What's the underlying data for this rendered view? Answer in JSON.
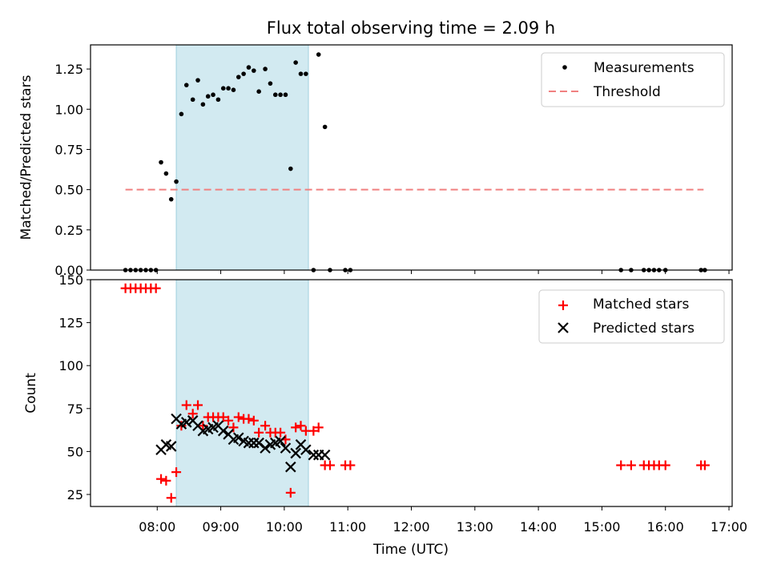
{
  "chart_data": [
    {
      "type": "scatter",
      "title": "Flux total observing time = 2.09 h",
      "xlabel": "",
      "ylabel": "Matched/Predicted stars",
      "xlim": [
        6.95,
        17.05
      ],
      "ylim": [
        0,
        1.4
      ],
      "xticks": [
        8,
        9,
        10,
        11,
        12,
        13,
        14,
        15,
        16,
        17
      ],
      "yticks": [
        0,
        0.25,
        0.5,
        0.75,
        1.0,
        1.25
      ],
      "ytick_labels": [
        "0.00",
        "0.25",
        "0.50",
        "0.75",
        "1.00",
        "1.25"
      ],
      "shaded_range": [
        8.3,
        10.38
      ],
      "threshold": {
        "value": 0.5,
        "x_range": [
          7.5,
          16.6
        ],
        "color": "#f08080"
      },
      "legend": {
        "position": "top-right",
        "measurements_label": "Measurements",
        "threshold_label": "Threshold"
      },
      "series": [
        {
          "name": "Measurements",
          "x": [
            7.5,
            7.58,
            7.66,
            7.74,
            7.82,
            7.9,
            7.98,
            8.06,
            8.14,
            8.22,
            8.3,
            8.38,
            8.46,
            8.56,
            8.64,
            8.72,
            8.8,
            8.88,
            8.96,
            9.04,
            9.12,
            9.2,
            9.28,
            9.36,
            9.44,
            9.52,
            9.6,
            9.7,
            9.78,
            9.86,
            9.94,
            10.02,
            10.1,
            10.18,
            10.26,
            10.34,
            10.46,
            10.54,
            10.64,
            10.72,
            10.96,
            11.04,
            15.3,
            15.46,
            15.66,
            15.74,
            15.82,
            15.9,
            16.0,
            16.56,
            16.62
          ],
          "y": [
            0,
            0,
            0,
            0,
            0,
            0,
            0,
            0.67,
            0.6,
            0.44,
            0.55,
            0.97,
            1.15,
            1.06,
            1.18,
            1.03,
            1.08,
            1.09,
            1.06,
            1.13,
            1.13,
            1.12,
            1.2,
            1.22,
            1.26,
            1.24,
            1.11,
            1.25,
            1.16,
            1.09,
            1.09,
            1.09,
            0.63,
            1.29,
            1.22,
            1.22,
            0,
            1.34,
            0.89,
            0,
            0,
            0,
            0,
            0,
            0,
            0,
            0,
            0,
            0,
            0,
            0
          ]
        }
      ]
    },
    {
      "type": "scatter",
      "title": "",
      "xlabel": "Time (UTC)",
      "ylabel": "Count",
      "xlim": [
        6.95,
        17.05
      ],
      "ylim": [
        18,
        150
      ],
      "xticks": [
        8,
        9,
        10,
        11,
        12,
        13,
        14,
        15,
        16,
        17
      ],
      "xtick_labels": [
        "08:00",
        "09:00",
        "10:00",
        "11:00",
        "12:00",
        "13:00",
        "14:00",
        "15:00",
        "16:00",
        "17:00"
      ],
      "yticks": [
        25,
        50,
        75,
        100,
        125,
        150
      ],
      "ytick_labels": [
        "25",
        "50",
        "75",
        "100",
        "125",
        "150"
      ],
      "shaded_range": [
        8.3,
        10.38
      ],
      "legend": {
        "position": "top-right",
        "matched_label": "Matched stars",
        "predicted_label": "Predicted stars"
      },
      "series": [
        {
          "name": "Matched stars",
          "marker": "+",
          "color": "#ff0000",
          "x": [
            7.5,
            7.58,
            7.66,
            7.74,
            7.82,
            7.9,
            7.98,
            8.06,
            8.14,
            8.22,
            8.3,
            8.38,
            8.46,
            8.56,
            8.64,
            8.72,
            8.8,
            8.88,
            8.96,
            9.04,
            9.12,
            9.2,
            9.28,
            9.36,
            9.44,
            9.52,
            9.6,
            9.7,
            9.78,
            9.86,
            9.94,
            10.02,
            10.1,
            10.18,
            10.26,
            10.34,
            10.46,
            10.54,
            10.64,
            10.72,
            10.96,
            11.04,
            15.3,
            15.46,
            15.66,
            15.74,
            15.82,
            15.9,
            16.0,
            16.56,
            16.62
          ],
          "y": [
            145,
            145,
            145,
            145,
            145,
            145,
            145,
            34,
            33,
            23,
            38,
            65,
            77,
            72,
            77,
            65,
            70,
            70,
            70,
            70,
            68,
            64,
            70,
            69,
            69,
            68,
            61,
            65,
            61,
            61,
            61,
            57,
            26,
            64,
            65,
            62,
            62,
            64,
            42,
            42,
            42,
            42,
            42,
            42,
            42,
            42,
            42,
            42,
            42,
            42,
            42
          ]
        },
        {
          "name": "Predicted stars",
          "marker": "x",
          "color": "#000000",
          "x": [
            8.06,
            8.14,
            8.22,
            8.3,
            8.38,
            8.46,
            8.56,
            8.64,
            8.72,
            8.8,
            8.88,
            8.96,
            9.04,
            9.12,
            9.2,
            9.28,
            9.36,
            9.44,
            9.52,
            9.6,
            9.7,
            9.78,
            9.86,
            9.94,
            10.02,
            10.1,
            10.18,
            10.26,
            10.34,
            10.46,
            10.54,
            10.64
          ],
          "y": [
            51,
            54,
            53,
            69,
            66,
            67,
            68,
            65,
            62,
            63,
            64,
            65,
            62,
            60,
            57,
            58,
            56,
            55,
            55,
            55,
            52,
            54,
            55,
            56,
            52,
            41,
            49,
            54,
            51,
            48,
            48,
            48
          ]
        }
      ]
    }
  ]
}
